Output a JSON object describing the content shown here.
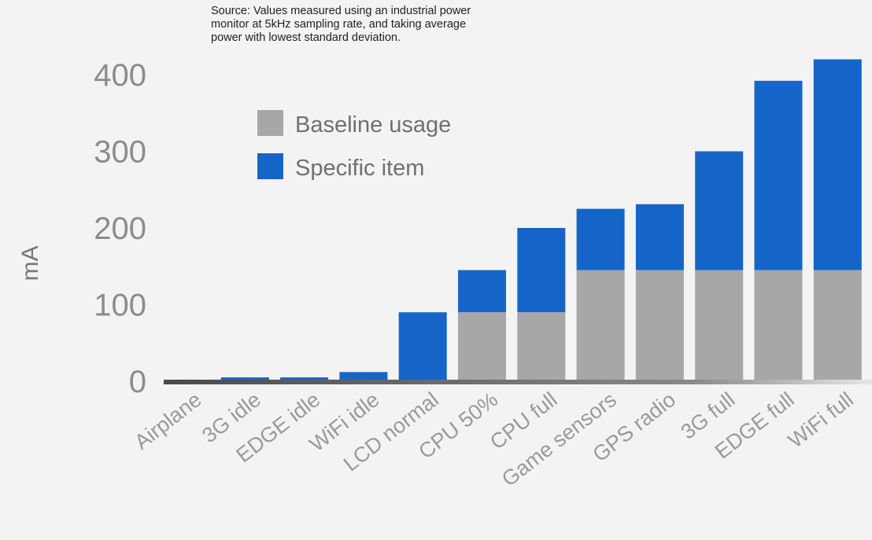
{
  "source_note": [
    "Source: Values measured using an industrial power",
    "monitor at 5kHz sampling rate, and taking average",
    "power with lowest standard deviation."
  ],
  "chart_data": {
    "type": "bar",
    "stacked": true,
    "ylabel": "mA",
    "ylim": [
      0,
      420
    ],
    "yticks": [
      0,
      100,
      200,
      300,
      400
    ],
    "categories": [
      "Airplane",
      "3G idle",
      "EDGE idle",
      "WiFi idle",
      "LCD normal",
      "CPU 50%",
      "CPU full",
      "Game sensors",
      "GPS radio",
      "3G full",
      "EDGE full",
      "WiFi full"
    ],
    "series": [
      {
        "name": "Baseline usage",
        "color": "#a7a7a7",
        "values": [
          0,
          0,
          0,
          0,
          0,
          90,
          90,
          145,
          145,
          145,
          145,
          145
        ]
      },
      {
        "name": "Specific item",
        "color": "#1565c8",
        "values": [
          0,
          5,
          5,
          12,
          90,
          55,
          110,
          80,
          86,
          155,
          247,
          275
        ]
      }
    ],
    "legend_position": "top-left",
    "grid": false
  }
}
